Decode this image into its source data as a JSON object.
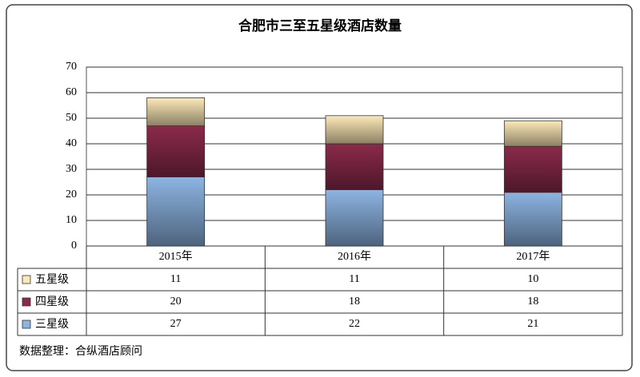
{
  "chart_data": {
    "type": "stacked_bar",
    "title": "合肥市三至五星级酒店数量",
    "categories": [
      "2015年",
      "2016年",
      "2017年"
    ],
    "series": [
      {
        "name": "三星级",
        "color": "#8db4e2",
        "values": [
          27,
          22,
          21
        ]
      },
      {
        "name": "四星级",
        "color": "#8b2a4b",
        "values": [
          20,
          18,
          18
        ]
      },
      {
        "name": "五星级",
        "color": "#fde9b8",
        "values": [
          11,
          11,
          10
        ]
      }
    ],
    "ylim": [
      0,
      70
    ],
    "yticks": [
      0,
      10,
      20,
      30,
      40,
      50,
      60,
      70
    ],
    "grid": true,
    "data_table": true,
    "note": "数据整理：合纵酒店顾问"
  }
}
